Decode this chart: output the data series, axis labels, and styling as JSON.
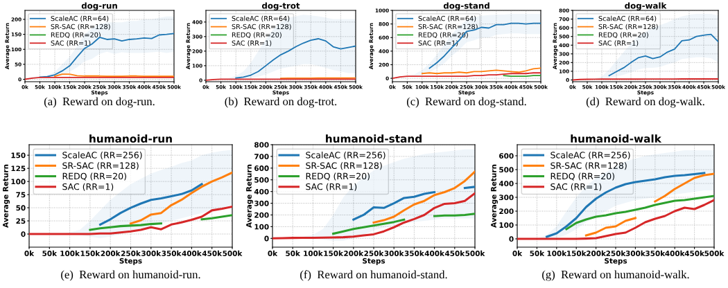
{
  "chart_data": [
    {
      "type": "line",
      "title": "dog-run",
      "xlabel": "Steps",
      "ylabel": "Average Return",
      "annotations": [
        "(a)  Reward on dog-run."
      ],
      "grid": true,
      "legend": "top left",
      "line_style": "solid",
      "marker": "none",
      "x": [
        0,
        25000,
        50000,
        75000,
        100000,
        125000,
        150000,
        175000,
        200000,
        225000,
        250000,
        275000,
        300000,
        325000,
        350000,
        375000,
        400000,
        425000,
        450000,
        475000,
        500000
      ],
      "xlim": [
        0,
        500000
      ],
      "xticks": [
        {
          "value": 0,
          "label": "0k"
        },
        {
          "value": 50000,
          "label": "50k"
        },
        {
          "value": 100000,
          "label": "100k"
        },
        {
          "value": 150000,
          "label": "150k"
        },
        {
          "value": 200000,
          "label": "200k"
        },
        {
          "value": 250000,
          "label": "250k"
        },
        {
          "value": 300000,
          "label": "300k"
        },
        {
          "value": 350000,
          "label": "350k"
        },
        {
          "value": 400000,
          "label": "400k"
        },
        {
          "value": 450000,
          "label": "450k"
        },
        {
          "value": 500000,
          "label": "500k"
        }
      ],
      "ylim": [
        -8,
        230
      ],
      "yticks": [
        0,
        50,
        100,
        150,
        200
      ],
      "series": [
        {
          "name": "ScaleAC (RR=64)",
          "color": "#1f77b4",
          "values": [
            null,
            null,
            7,
            9,
            15,
            28,
            45,
            75,
            103,
            118,
            140,
            133,
            135,
            128,
            133,
            135,
            138,
            136,
            148,
            150,
            153
          ],
          "lower": [
            0,
            2,
            4,
            5,
            8,
            12,
            25,
            40,
            60,
            68,
            85,
            92,
            85,
            90,
            88,
            88,
            88,
            90,
            92,
            88,
            92
          ],
          "upper": [
            0,
            8,
            10,
            14,
            25,
            50,
            75,
            110,
            150,
            170,
            185,
            190,
            190,
            190,
            195,
            195,
            200,
            200,
            205,
            210,
            210
          ]
        },
        {
          "name": "SR-SAC (RR=128)",
          "color": "#ff7f0e",
          "values": [
            null,
            null,
            null,
            null,
            10,
            17,
            17,
            12,
            11,
            11,
            11,
            10,
            10,
            10,
            11,
            11,
            10,
            10,
            10,
            10,
            10
          ]
        },
        {
          "name": "REDQ (RR=20)",
          "color": "#2ca02c",
          "values": [
            null,
            null,
            null,
            null,
            null,
            null,
            null,
            null,
            null,
            null,
            null,
            null,
            null,
            null,
            null,
            null,
            null,
            null,
            null,
            null,
            null
          ]
        },
        {
          "name": "SAC (RR=1)",
          "color": "#d62728",
          "values": [
            0,
            4,
            6,
            6,
            6,
            6,
            6,
            6,
            6,
            6,
            6,
            6,
            6,
            6,
            6,
            6,
            6,
            6,
            6,
            6,
            6
          ]
        }
      ]
    },
    {
      "type": "line",
      "title": "dog-trot",
      "xlabel": "Steps",
      "ylabel": "Average Return",
      "annotations": [
        "(b)  Reward on dog-trot."
      ],
      "grid": true,
      "legend": "top left",
      "line_style": "solid",
      "marker": "none",
      "x": [
        0,
        25000,
        50000,
        75000,
        100000,
        125000,
        150000,
        175000,
        200000,
        225000,
        250000,
        275000,
        300000,
        325000,
        350000,
        375000,
        400000,
        425000,
        450000,
        475000,
        500000
      ],
      "xlim": [
        0,
        500000
      ],
      "xticks": [
        {
          "value": 0,
          "label": "0k"
        },
        {
          "value": 50000,
          "label": "50k"
        },
        {
          "value": 100000,
          "label": "100k"
        },
        {
          "value": 150000,
          "label": "150k"
        },
        {
          "value": 200000,
          "label": "200k"
        },
        {
          "value": 250000,
          "label": "250k"
        },
        {
          "value": 300000,
          "label": "300k"
        },
        {
          "value": 350000,
          "label": "350k"
        },
        {
          "value": 400000,
          "label": "400k"
        },
        {
          "value": 450000,
          "label": "450k"
        },
        {
          "value": 500000,
          "label": "500k"
        }
      ],
      "ylim": [
        -10,
        480
      ],
      "yticks": [
        0,
        100,
        200,
        300,
        400
      ],
      "series": [
        {
          "name": "ScaleAC (RR=64)",
          "color": "#1f77b4",
          "values": [
            null,
            null,
            null,
            null,
            15,
            22,
            35,
            60,
            100,
            140,
            175,
            200,
            230,
            255,
            275,
            285,
            270,
            230,
            215,
            225,
            235
          ],
          "lower": [
            0,
            3,
            5,
            6,
            8,
            10,
            15,
            25,
            40,
            60,
            80,
            90,
            100,
            110,
            110,
            100,
            85,
            70,
            60,
            50,
            50
          ],
          "upper": [
            0,
            8,
            12,
            15,
            30,
            60,
            120,
            200,
            280,
            350,
            400,
            430,
            440,
            450,
            445,
            440,
            430,
            420,
            420,
            420,
            420
          ]
        },
        {
          "name": "SR-SAC (RR=128)",
          "color": "#ff7f0e",
          "values": [
            null,
            null,
            null,
            null,
            null,
            null,
            null,
            null,
            null,
            null,
            13,
            14,
            14,
            14,
            14,
            15,
            15,
            15,
            15,
            15,
            16
          ]
        },
        {
          "name": "REDQ (RR=20)",
          "color": "#2ca02c",
          "values": [
            null,
            null,
            null,
            null,
            null,
            null,
            null,
            null,
            null,
            null,
            null,
            null,
            null,
            null,
            null,
            null,
            null,
            null,
            null,
            null,
            null
          ]
        },
        {
          "name": "SAC (RR=1)",
          "color": "#d62728",
          "values": [
            0,
            5,
            7,
            7,
            7,
            7,
            7,
            7,
            7,
            7,
            7,
            7,
            7,
            7,
            7,
            7,
            7,
            7,
            7,
            7,
            7
          ]
        }
      ]
    },
    {
      "type": "line",
      "title": "dog-stand",
      "xlabel": "Steps",
      "ylabel": "Average Return",
      "annotations": [
        "(c)  Reward on dog-stand."
      ],
      "grid": true,
      "legend": "top left",
      "line_style": "solid",
      "marker": "none",
      "x": [
        0,
        25000,
        50000,
        75000,
        100000,
        125000,
        150000,
        175000,
        200000,
        225000,
        250000,
        275000,
        300000,
        325000,
        350000,
        375000,
        400000,
        425000,
        450000,
        475000,
        500000
      ],
      "xlim": [
        0,
        500000
      ],
      "xticks": [
        {
          "value": 0,
          "label": "0k"
        },
        {
          "value": 50000,
          "label": "50k"
        },
        {
          "value": 100000,
          "label": "100k"
        },
        {
          "value": 150000,
          "label": "150k"
        },
        {
          "value": 200000,
          "label": "200k"
        },
        {
          "value": 250000,
          "label": "250k"
        },
        {
          "value": 300000,
          "label": "300k"
        },
        {
          "value": 350000,
          "label": "350k"
        },
        {
          "value": 400000,
          "label": "400k"
        },
        {
          "value": 450000,
          "label": "450k"
        },
        {
          "value": 500000,
          "label": "500k"
        }
      ],
      "ylim": [
        -50,
        1000
      ],
      "yticks": [
        0,
        200,
        400,
        600,
        800,
        1000
      ],
      "series": [
        {
          "name": "ScaleAC (RR=64)",
          "color": "#1f77b4",
          "values": [
            null,
            null,
            null,
            null,
            null,
            150,
            230,
            330,
            450,
            560,
            690,
            710,
            750,
            740,
            790,
            790,
            810,
            810,
            800,
            810,
            810
          ],
          "lower": [
            0,
            15,
            25,
            30,
            50,
            90,
            150,
            220,
            330,
            420,
            530,
            560,
            600,
            600,
            640,
            650,
            660,
            660,
            650,
            650,
            650
          ],
          "upper": [
            0,
            25,
            35,
            60,
            120,
            220,
            350,
            500,
            650,
            760,
            860,
            900,
            920,
            930,
            940,
            940,
            950,
            950,
            950,
            950,
            950
          ]
        },
        {
          "name": "SR-SAC (RR=128)",
          "color": "#ff7f0e",
          "values": [
            null,
            null,
            null,
            null,
            70,
            80,
            70,
            80,
            80,
            90,
            80,
            100,
            100,
            110,
            120,
            110,
            100,
            90,
            110,
            140,
            150
          ]
        },
        {
          "name": "REDQ (RR=20)",
          "color": "#2ca02c",
          "values": [
            null,
            null,
            null,
            null,
            null,
            null,
            null,
            null,
            null,
            null,
            null,
            null,
            null,
            null,
            null,
            40,
            30,
            30,
            30,
            40,
            40
          ]
        },
        {
          "name": "SAC (RR=1)",
          "color": "#d62728",
          "values": [
            0,
            20,
            30,
            30,
            30,
            30,
            30,
            30,
            30,
            30,
            30,
            40,
            40,
            50,
            50,
            60,
            70,
            70,
            70,
            80,
            80
          ]
        }
      ]
    },
    {
      "type": "line",
      "title": "dog-walk",
      "xlabel": "Steps",
      "ylabel": "Average Return",
      "annotations": [
        "(d)  Reward on dog-walk."
      ],
      "grid": true,
      "legend": "top left",
      "line_style": "solid",
      "marker": "none",
      "x": [
        0,
        25000,
        50000,
        75000,
        100000,
        125000,
        150000,
        175000,
        200000,
        225000,
        250000,
        275000,
        300000,
        325000,
        350000,
        375000,
        400000,
        425000,
        450000,
        475000,
        500000
      ],
      "xlim": [
        0,
        500000
      ],
      "xticks": [
        {
          "value": 0,
          "label": "0k"
        },
        {
          "value": 50000,
          "label": "50k"
        },
        {
          "value": 100000,
          "label": "100k"
        },
        {
          "value": 150000,
          "label": "150k"
        },
        {
          "value": 200000,
          "label": "200k"
        },
        {
          "value": 250000,
          "label": "250k"
        },
        {
          "value": 300000,
          "label": "300k"
        },
        {
          "value": 350000,
          "label": "350k"
        },
        {
          "value": 400000,
          "label": "400k"
        },
        {
          "value": 450000,
          "label": "450k"
        },
        {
          "value": 500000,
          "label": "500k"
        }
      ],
      "ylim": [
        -20,
        800
      ],
      "yticks": [
        0,
        100,
        200,
        300,
        400,
        500,
        600,
        700,
        800
      ],
      "series": [
        {
          "name": "ScaleAC (RR=64)",
          "color": "#1f77b4",
          "values": [
            null,
            null,
            null,
            null,
            null,
            50,
            95,
            140,
            200,
            255,
            275,
            245,
            265,
            320,
            355,
            450,
            460,
            500,
            515,
            525,
            440
          ],
          "lower": [
            0,
            3,
            5,
            6,
            8,
            20,
            40,
            60,
            90,
            120,
            140,
            140,
            150,
            180,
            200,
            240,
            250,
            260,
            260,
            250,
            200
          ],
          "upper": [
            0,
            8,
            12,
            15,
            40,
            120,
            220,
            320,
            420,
            500,
            550,
            600,
            630,
            660,
            700,
            730,
            750,
            760,
            760,
            760,
            740
          ]
        },
        {
          "name": "SR-SAC (RR=128)",
          "color": "#ff7f0e",
          "values": [
            null,
            null,
            null,
            null,
            null,
            null,
            null,
            null,
            null,
            null,
            null,
            null,
            null,
            null,
            null,
            null,
            null,
            null,
            null,
            null,
            null
          ]
        },
        {
          "name": "REDQ (RR=20)",
          "color": "#2ca02c",
          "values": [
            null,
            null,
            null,
            null,
            null,
            null,
            null,
            null,
            null,
            null,
            null,
            null,
            null,
            null,
            null,
            null,
            null,
            null,
            null,
            null,
            null
          ]
        },
        {
          "name": "SAC (RR=1)",
          "color": "#d62728",
          "values": [
            0,
            6,
            8,
            9,
            10,
            10,
            10,
            10,
            10,
            10,
            11,
            11,
            11,
            11,
            11,
            12,
            12,
            12,
            12,
            12,
            12
          ]
        }
      ]
    },
    {
      "type": "line",
      "title": "humanoid-run",
      "xlabel": "Steps",
      "ylabel": "Average Return",
      "annotations": [
        "(e)  Reward on humanoid-run."
      ],
      "grid": true,
      "legend": "top left",
      "line_style": "solid",
      "marker": "none",
      "x": [
        0,
        25000,
        50000,
        75000,
        100000,
        125000,
        150000,
        175000,
        200000,
        225000,
        250000,
        275000,
        300000,
        325000,
        350000,
        375000,
        400000,
        425000,
        450000,
        475000,
        500000
      ],
      "xlim": [
        0,
        500000
      ],
      "xticks": [
        {
          "value": 0,
          "label": "0k"
        },
        {
          "value": 50000,
          "label": "50k"
        },
        {
          "value": 100000,
          "label": "100k"
        },
        {
          "value": 150000,
          "label": "150k"
        },
        {
          "value": 200000,
          "label": "200k"
        },
        {
          "value": 250000,
          "label": "250k"
        },
        {
          "value": 300000,
          "label": "300k"
        },
        {
          "value": 350000,
          "label": "350k"
        },
        {
          "value": 400000,
          "label": "400k"
        },
        {
          "value": 450000,
          "label": "450k"
        },
        {
          "value": 500000,
          "label": "500k"
        }
      ],
      "ylim": [
        -25,
        170
      ],
      "yticks": [
        0,
        25,
        50,
        75,
        100,
        125,
        150
      ],
      "series": [
        {
          "name": "ScaleAC (RR=256)",
          "color": "#1f77b4",
          "values": [
            null,
            null,
            null,
            null,
            null,
            null,
            null,
            18,
            28,
            40,
            50,
            58,
            65,
            68,
            72,
            76,
            83,
            95,
            null,
            null,
            null
          ],
          "lower": [
            0,
            0,
            0,
            0,
            0,
            -2,
            -5,
            -8,
            -5,
            0,
            5,
            10,
            15,
            20,
            25,
            30,
            35,
            40,
            45,
            50,
            55
          ],
          "upper": [
            0,
            0,
            0,
            0,
            3,
            8,
            25,
            45,
            65,
            80,
            95,
            105,
            115,
            122,
            128,
            135,
            140,
            150,
            155,
            158,
            160
          ]
        },
        {
          "name": "SR-SAC (RR=128)",
          "color": "#ff7f0e",
          "values": [
            null,
            null,
            null,
            null,
            null,
            null,
            null,
            null,
            null,
            null,
            20,
            26,
            37,
            40,
            55,
            65,
            78,
            90,
            100,
            108,
            117
          ]
        },
        {
          "name": "REDQ (RR=20)",
          "color": "#2ca02c",
          "values": [
            null,
            null,
            null,
            null,
            null,
            null,
            8,
            11,
            13,
            15,
            16,
            17,
            19,
            20,
            null,
            null,
            null,
            28,
            30,
            33,
            36
          ]
        },
        {
          "name": "SAC (RR=1)",
          "color": "#d62728",
          "values": [
            0,
            0,
            0,
            0,
            0,
            0,
            0,
            1,
            1,
            3,
            5,
            8,
            13,
            9,
            18,
            22,
            27,
            33,
            45,
            48,
            52
          ]
        }
      ]
    },
    {
      "type": "line",
      "title": "humanoid-stand",
      "xlabel": "Steps",
      "ylabel": "Average Return",
      "annotations": [
        "(f)  Reward on humanoid-stand."
      ],
      "grid": true,
      "legend": "top left",
      "line_style": "solid",
      "marker": "none",
      "x": [
        0,
        25000,
        50000,
        75000,
        100000,
        125000,
        150000,
        175000,
        200000,
        225000,
        250000,
        275000,
        300000,
        325000,
        350000,
        375000,
        400000,
        425000,
        450000,
        475000,
        500000
      ],
      "xlim": [
        0,
        500000
      ],
      "xticks": [
        {
          "value": 0,
          "label": "0k"
        },
        {
          "value": 50000,
          "label": "50k"
        },
        {
          "value": 100000,
          "label": "100k"
        },
        {
          "value": 150000,
          "label": "150k"
        },
        {
          "value": 200000,
          "label": "200k"
        },
        {
          "value": 250000,
          "label": "250k"
        },
        {
          "value": 300000,
          "label": "300k"
        },
        {
          "value": 350000,
          "label": "350k"
        },
        {
          "value": 400000,
          "label": "400k"
        },
        {
          "value": 450000,
          "label": "450k"
        },
        {
          "value": 500000,
          "label": "500k"
        }
      ],
      "ylim": [
        -75,
        800
      ],
      "yticks": [
        0,
        100,
        200,
        300,
        400,
        500,
        600,
        700,
        800
      ],
      "series": [
        {
          "name": "ScaleAC (RR=256)",
          "color": "#1f77b4",
          "values": [
            null,
            null,
            null,
            null,
            null,
            null,
            null,
            null,
            160,
            200,
            265,
            260,
            300,
            345,
            355,
            380,
            395,
            null,
            null,
            430,
            440
          ],
          "lower": [
            0,
            0,
            0,
            0,
            0,
            -10,
            -20,
            -20,
            0,
            30,
            70,
            90,
            110,
            130,
            140,
            150,
            160,
            170,
            170,
            170,
            170
          ],
          "upper": [
            0,
            5,
            10,
            15,
            30,
            80,
            200,
            350,
            450,
            520,
            580,
            620,
            650,
            680,
            700,
            720,
            730,
            740,
            750,
            760,
            760
          ]
        },
        {
          "name": "SR-SAC (RR=128)",
          "color": "#ff7f0e",
          "values": [
            null,
            null,
            null,
            null,
            null,
            null,
            null,
            null,
            null,
            null,
            135,
            155,
            185,
            240,
            290,
            320,
            370,
            395,
            430,
            490,
            570
          ]
        },
        {
          "name": "REDQ (RR=20)",
          "color": "#2ca02c",
          "values": [
            null,
            null,
            null,
            null,
            null,
            null,
            40,
            60,
            80,
            95,
            110,
            125,
            140,
            160,
            null,
            null,
            190,
            195,
            195,
            200,
            210
          ]
        },
        {
          "name": "SAC (RR=1)",
          "color": "#d62728",
          "values": [
            0,
            2,
            4,
            5,
            5,
            6,
            8,
            10,
            15,
            25,
            35,
            60,
            95,
            135,
            165,
            200,
            260,
            295,
            300,
            320,
            385
          ]
        }
      ]
    },
    {
      "type": "line",
      "title": "humanoid-walk",
      "xlabel": "Steps",
      "ylabel": "Average Return",
      "annotations": [
        "(g)  Reward on humanoid-walk."
      ],
      "grid": true,
      "legend": "top left",
      "line_style": "solid",
      "marker": "none",
      "x": [
        0,
        25000,
        50000,
        75000,
        100000,
        125000,
        150000,
        175000,
        200000,
        225000,
        250000,
        275000,
        300000,
        325000,
        350000,
        375000,
        400000,
        425000,
        450000,
        475000,
        500000
      ],
      "xlim": [
        0,
        500000
      ],
      "xticks": [
        {
          "value": 0,
          "label": "0k"
        },
        {
          "value": 50000,
          "label": "50k"
        },
        {
          "value": 100000,
          "label": "100k"
        },
        {
          "value": 150000,
          "label": "150k"
        },
        {
          "value": 200000,
          "label": "200k"
        },
        {
          "value": 250000,
          "label": "250k"
        },
        {
          "value": 300000,
          "label": "300k"
        },
        {
          "value": 350000,
          "label": "350k"
        },
        {
          "value": 400000,
          "label": "400k"
        },
        {
          "value": 450000,
          "label": "450k"
        },
        {
          "value": 500000,
          "label": "500k"
        }
      ],
      "ylim": [
        -60,
        680
      ],
      "yticks": [
        0,
        100,
        200,
        300,
        400,
        500,
        600
      ],
      "series": [
        {
          "name": "ScaleAC (RR=256)",
          "color": "#1f77b4",
          "values": [
            null,
            null,
            null,
            15,
            40,
            90,
            150,
            230,
            290,
            335,
            370,
            395,
            410,
            420,
            430,
            445,
            455,
            460,
            468,
            475,
            null
          ],
          "lower": [
            0,
            0,
            0,
            0,
            5,
            30,
            70,
            120,
            160,
            200,
            240,
            260,
            280,
            290,
            300,
            310,
            320,
            330,
            340,
            350,
            350
          ],
          "upper": [
            0,
            0,
            0,
            30,
            90,
            200,
            300,
            380,
            440,
            480,
            520,
            560,
            580,
            600,
            610,
            620,
            630,
            640,
            640,
            640,
            640
          ]
        },
        {
          "name": "SR-SAC (RR=128)",
          "color": "#ff7f0e",
          "values": [
            null,
            null,
            null,
            null,
            null,
            null,
            null,
            25,
            45,
            80,
            90,
            130,
            150,
            null,
            270,
            310,
            360,
            400,
            440,
            460,
            470
          ]
        },
        {
          "name": "REDQ (RR=20)",
          "color": "#2ca02c",
          "values": [
            null,
            null,
            null,
            null,
            null,
            70,
            115,
            140,
            160,
            170,
            185,
            195,
            210,
            225,
            245,
            260,
            275,
            280,
            290,
            300,
            310
          ]
        },
        {
          "name": "SAC (RR=1)",
          "color": "#d62728",
          "values": [
            0,
            0,
            0,
            0,
            0,
            0,
            0,
            2,
            5,
            20,
            35,
            45,
            80,
            120,
            145,
            165,
            200,
            225,
            215,
            245,
            280
          ]
        }
      ]
    }
  ]
}
